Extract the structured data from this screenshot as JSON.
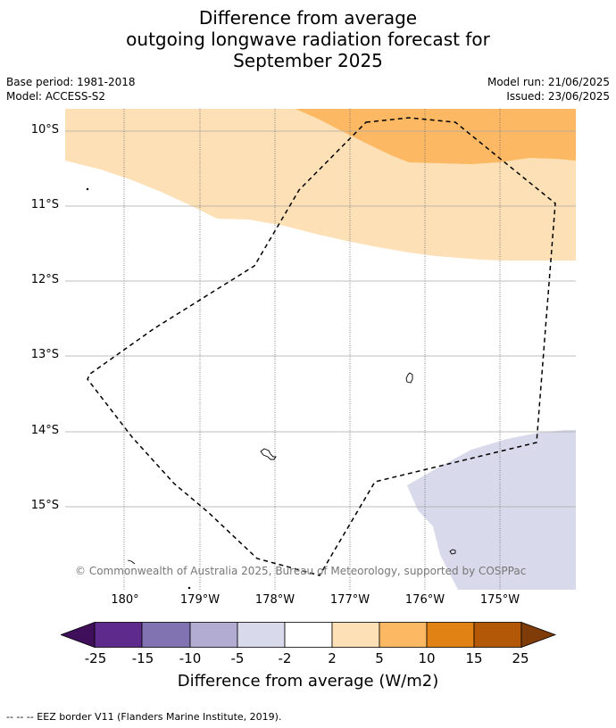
{
  "header": {
    "title_line1": "Difference from average",
    "title_line2": "outgoing longwave radiation forecast for",
    "title_line3": "September 2025"
  },
  "meta": {
    "base_period": "Base period: 1981-2018",
    "model": "Model: ACCESS-S2",
    "model_run": "Model run: 21/06/2025",
    "issued": "Issued: 23/06/2025"
  },
  "map": {
    "lat_labels": [
      "10°S",
      "11°S",
      "12°S",
      "13°S",
      "14°S",
      "15°S"
    ],
    "lon_labels": [
      "180°",
      "179°W",
      "178°W",
      "177°W",
      "176°W",
      "175°W"
    ],
    "copyright": "© Commonwealth of Australia 2025, Bureau of Meteorology, supported by COSPPac",
    "colors": {
      "light_orange_2_5": "#fde0b5",
      "orange_5_10": "#fdb863",
      "light_purple_-5_-2": "#d8daeb",
      "eez_border": "#000000"
    }
  },
  "colorbar": {
    "ticks": [
      "-25",
      "-15",
      "-10",
      "-5",
      "-2",
      "2",
      "5",
      "10",
      "15",
      "25"
    ],
    "colors": [
      "#3f0f5c",
      "#5e2a8c",
      "#8172b2",
      "#b2abd2",
      "#d8daeb",
      "#ffffff",
      "#fee0b6",
      "#fdb863",
      "#e08214",
      "#b35806",
      "#7f3b08"
    ],
    "title": "Difference from average (W/m2)"
  },
  "footnote": "--  --  -- EEZ border V11 (Flanders Marine Institute, 2019)."
}
